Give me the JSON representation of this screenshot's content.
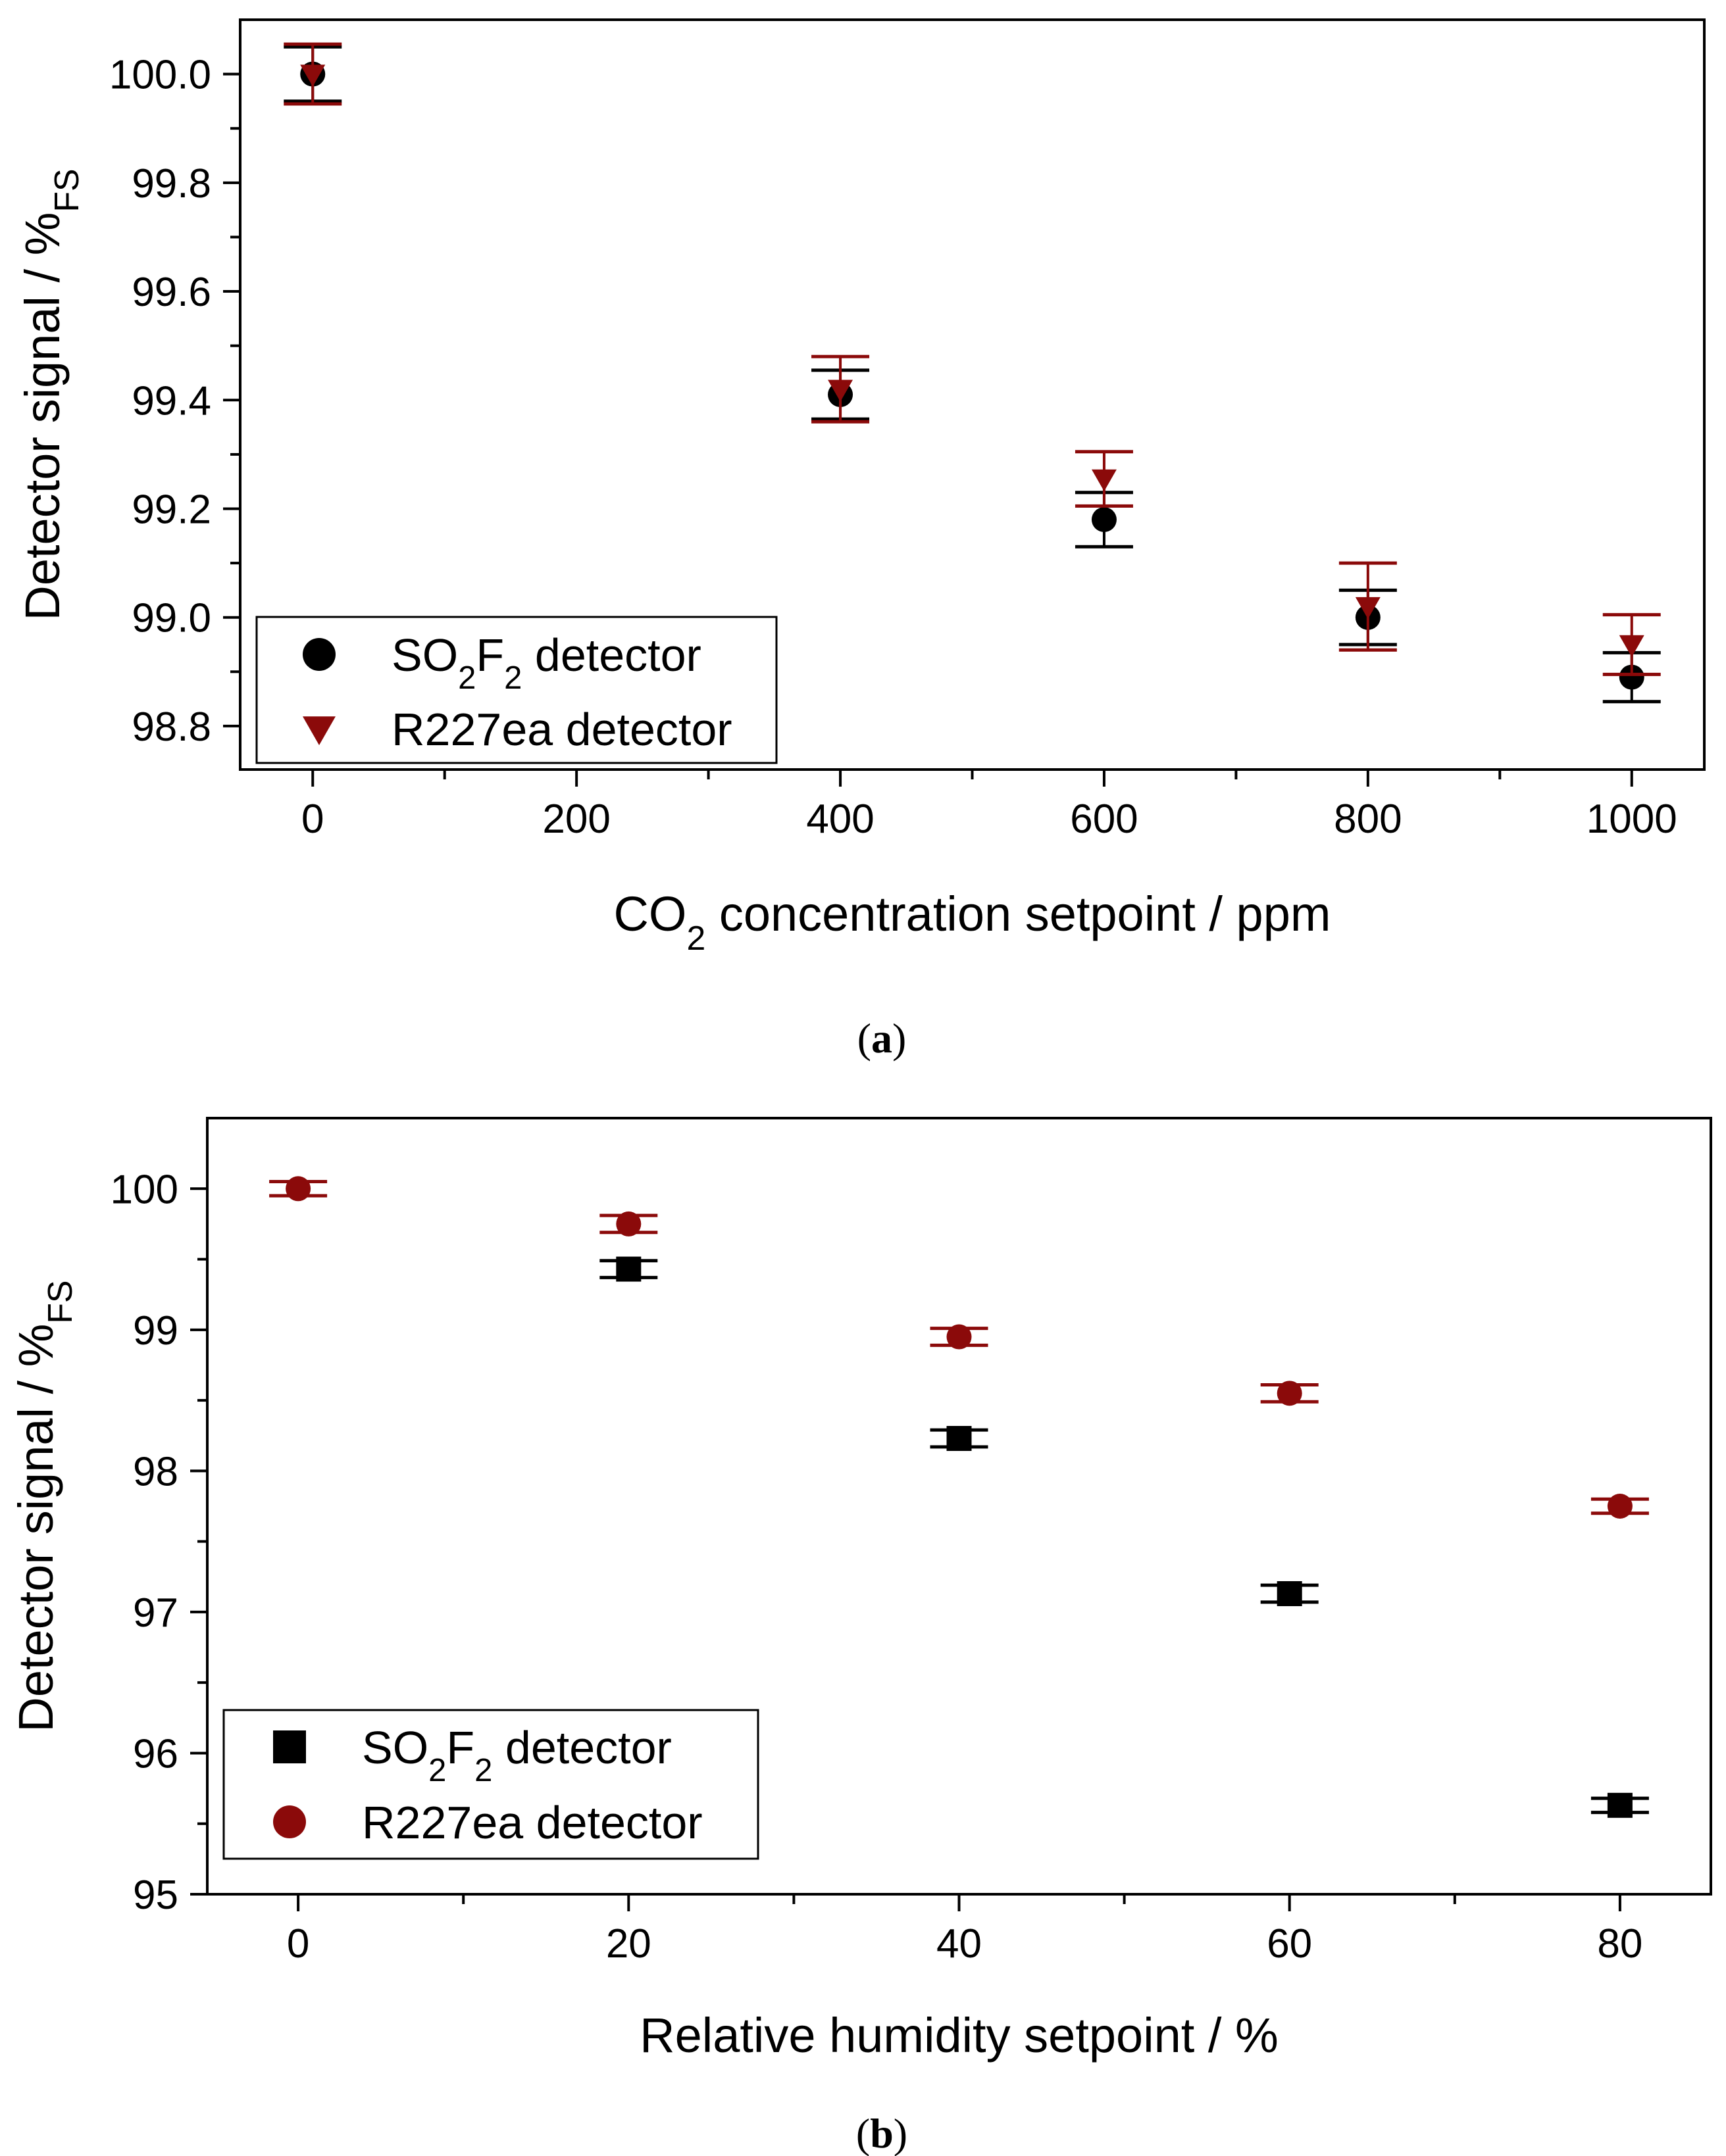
{
  "colors": {
    "black": "#000000",
    "darkred": "#8b0a0a"
  },
  "chart_data": [
    {
      "type": "scatter",
      "caption_letter": "a",
      "xlabel_parts": [
        "CO",
        "2",
        " concentration setpoint / ppm"
      ],
      "ylabel_parts": [
        "Detector signal / %",
        "FS"
      ],
      "xlim": [
        -55,
        1055
      ],
      "ylim": [
        98.72,
        100.1
      ],
      "xticks": [
        0,
        200,
        400,
        600,
        800,
        1000
      ],
      "xtick_labels": [
        "0",
        "200",
        "400",
        "600",
        "800",
        "1000"
      ],
      "yticks": [
        98.8,
        99.0,
        99.2,
        99.4,
        99.6,
        99.8,
        100.0
      ],
      "ytick_labels": [
        "98.8",
        "99.0",
        "99.2",
        "99.4",
        "99.6",
        "99.8",
        "100.0"
      ],
      "legend": {
        "position": "bottom-left",
        "entries": [
          {
            "parts": [
              "SO",
              "2",
              "F",
              "2",
              " detector"
            ],
            "marker": "circle",
            "color": "#000000"
          },
          {
            "parts": [
              "R227ea detector"
            ],
            "marker": "triangle-down",
            "color": "#8b0a0a"
          }
        ]
      },
      "series": [
        {
          "name": "SO2F2 detector",
          "marker": "circle",
          "color": "#000000",
          "x": [
            0,
            400,
            600,
            800,
            1000
          ],
          "y": [
            100.0,
            99.41,
            99.18,
            99.0,
            98.89
          ],
          "err": [
            0.05,
            0.045,
            0.05,
            0.05,
            0.045
          ]
        },
        {
          "name": "R227ea detector",
          "marker": "triangle-down",
          "color": "#8b0a0a",
          "x": [
            0,
            400,
            600,
            800,
            1000
          ],
          "y": [
            100.0,
            99.42,
            99.255,
            99.02,
            98.95
          ],
          "err": [
            0.055,
            0.06,
            0.05,
            0.08,
            0.055
          ]
        }
      ]
    },
    {
      "type": "scatter",
      "caption_letter": "b",
      "xlabel_parts": [
        "Relative humidity setpoint / %"
      ],
      "ylabel_parts": [
        "Detector signal / %",
        "FS"
      ],
      "xlim": [
        -5.5,
        85.5
      ],
      "ylim": [
        95.0,
        100.5
      ],
      "xticks": [
        0,
        20,
        40,
        60,
        80
      ],
      "xtick_labels": [
        "0",
        "20",
        "40",
        "60",
        "80"
      ],
      "yticks": [
        95,
        96,
        97,
        98,
        99,
        100
      ],
      "ytick_labels": [
        "95",
        "96",
        "97",
        "98",
        "99",
        "100"
      ],
      "legend": {
        "position": "bottom-left",
        "entries": [
          {
            "parts": [
              "SO",
              "2",
              "F",
              "2",
              " detector"
            ],
            "marker": "square",
            "color": "#000000"
          },
          {
            "parts": [
              "R227ea detector"
            ],
            "marker": "circle",
            "color": "#8b0a0a"
          }
        ]
      },
      "series": [
        {
          "name": "SO2F2 detector",
          "marker": "square",
          "color": "#000000",
          "x": [
            20,
            40,
            60,
            80
          ],
          "y": [
            99.43,
            98.23,
            97.13,
            95.63
          ],
          "err": [
            0.06,
            0.06,
            0.06,
            0.05
          ]
        },
        {
          "name": "R227ea detector",
          "marker": "circle",
          "color": "#8b0a0a",
          "x": [
            0,
            20,
            40,
            60,
            80
          ],
          "y": [
            100.0,
            99.75,
            98.95,
            98.55,
            97.75
          ],
          "err": [
            0.05,
            0.06,
            0.06,
            0.06,
            0.05
          ]
        }
      ]
    }
  ]
}
